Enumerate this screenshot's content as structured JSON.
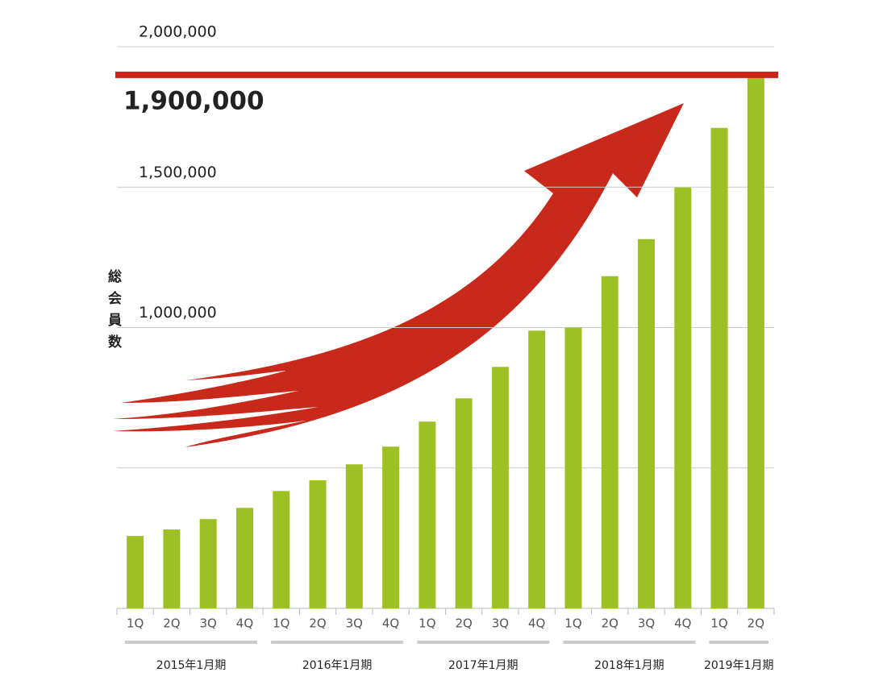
{
  "chart_data": {
    "type": "bar",
    "y_axis_label": "総会員数",
    "categories": [
      "1Q",
      "2Q",
      "3Q",
      "4Q",
      "1Q",
      "2Q",
      "3Q",
      "4Q",
      "1Q",
      "2Q",
      "3Q",
      "4Q",
      "1Q",
      "2Q",
      "3Q",
      "4Q",
      "1Q",
      "2Q"
    ],
    "groups": [
      "2015年1月期",
      "2016年1月期",
      "2017年1月期",
      "2018年1月期",
      "2019年1月期"
    ],
    "values": [
      258000,
      281000,
      318000,
      358000,
      418000,
      456000,
      513000,
      576000,
      665000,
      748000,
      860000,
      989000,
      1000000,
      1183000,
      1315000,
      1499000,
      1711000,
      1900000
    ],
    "color": "#9dc125",
    "ylim": [
      0,
      2000000
    ],
    "yticks": [
      {
        "value": 500000,
        "label": null
      },
      {
        "value": 1000000,
        "label": "1,000,000"
      },
      {
        "value": 1500000,
        "label": "1,500,000"
      },
      {
        "value": 2000000,
        "label": "2,000,000"
      }
    ],
    "grid": true,
    "reference_line": {
      "value": 1900000,
      "label": "1,900,000",
      "color": "#c8261a"
    }
  }
}
